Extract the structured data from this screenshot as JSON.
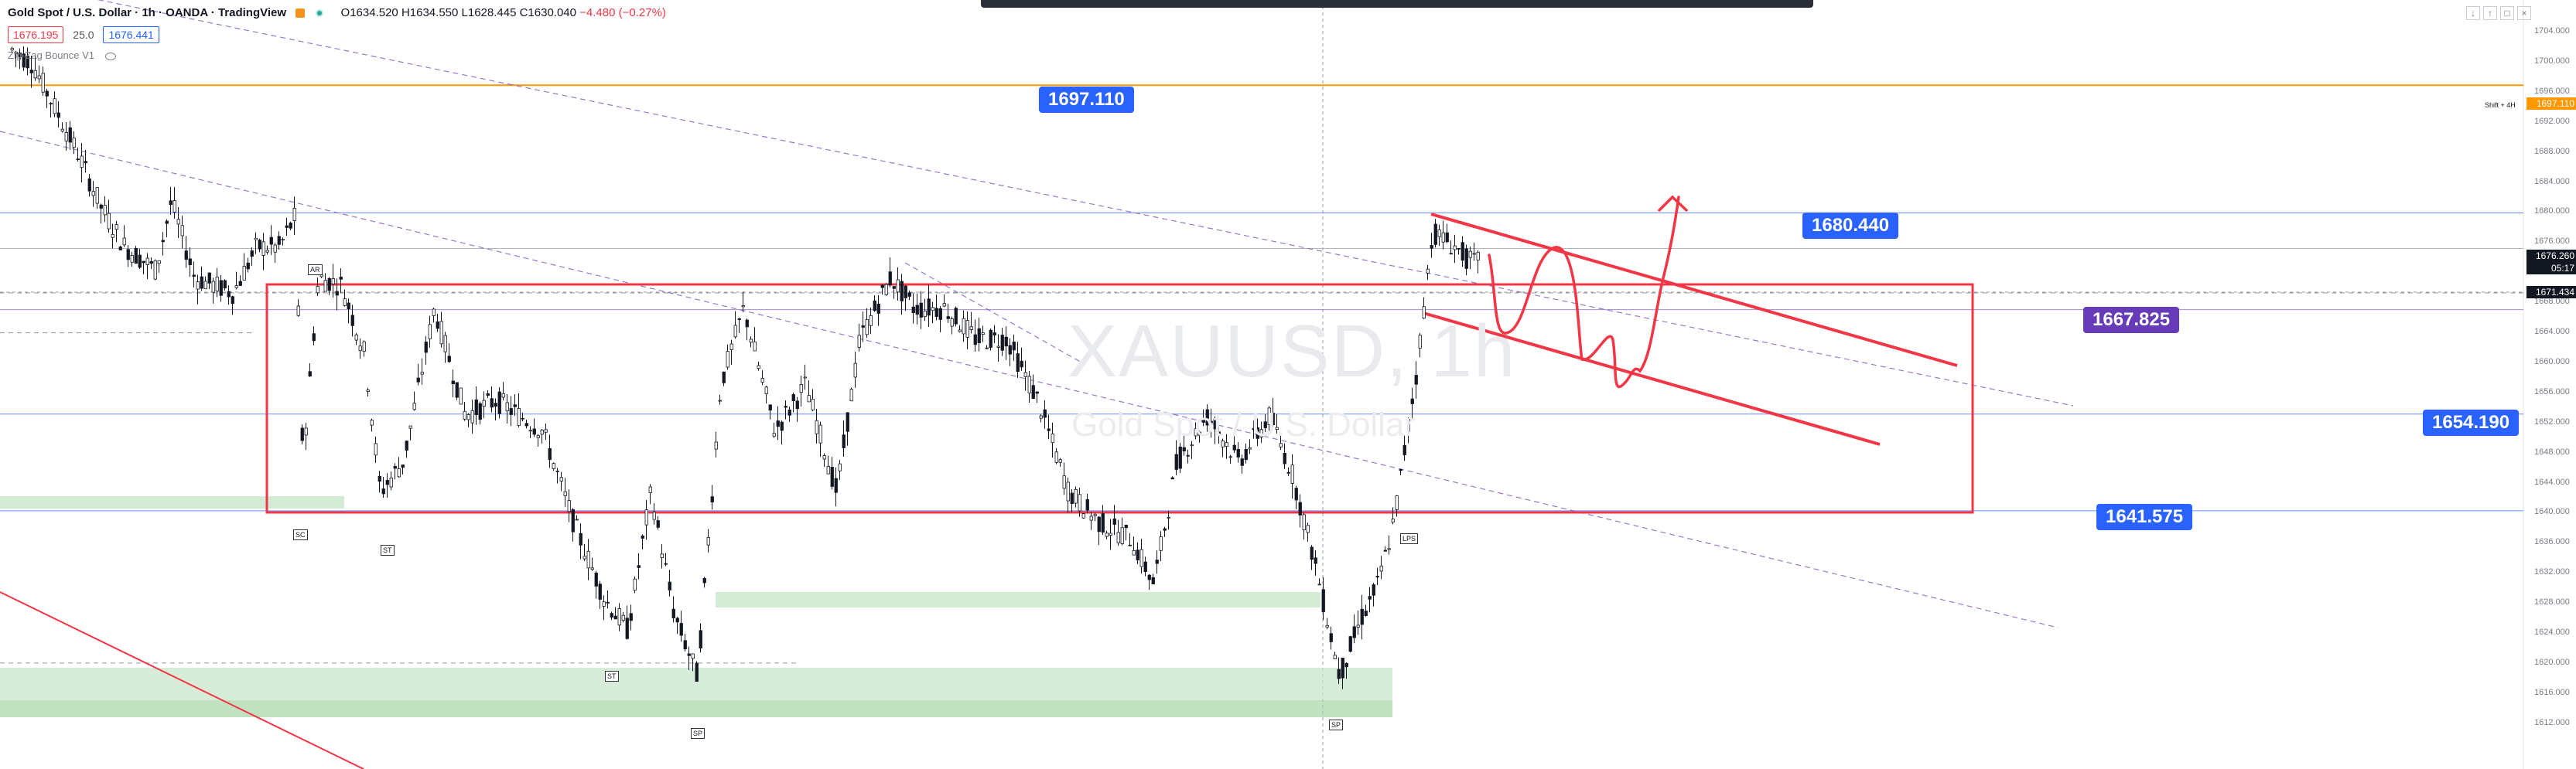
{
  "header": {
    "title": "Gold Spot / U.S. Dollar · 1h · OANDA · TradingView",
    "ohlc": "O1634.520 H1634.550 L1628.445 C1630.040",
    "change": "−4.480 (−0.27%)"
  },
  "quotes": {
    "sell": "1676.195",
    "spread": "25.0",
    "buy": "1676.441"
  },
  "indicator": {
    "name": "Zig-Zag Bounce V1"
  },
  "watermark": {
    "symbol": "XAUUSD, 1h",
    "description": "Gold Spot / U.S. Dollar"
  },
  "price_labels": {
    "p1697": "1697.110",
    "p1680": "1680.440",
    "p1667": "1667.825",
    "p1654": "1654.190",
    "p1641": "1641.575"
  },
  "axis": {
    "ticks": [
      "1704.000",
      "1700.000",
      "1696.000",
      "1692.000",
      "1688.000",
      "1684.000",
      "1680.000",
      "1676.000",
      "1672.000",
      "1668.000",
      "1664.000",
      "1660.000",
      "1656.000",
      "1652.000",
      "1648.000",
      "1644.000",
      "1640.000",
      "1636.000",
      "1632.000",
      "1628.000",
      "1624.000",
      "1620.000",
      "1616.000",
      "1612.000"
    ],
    "last_price": "1676.260",
    "countdown": "05:17",
    "tag_1697": "1697.110",
    "tag_1671": "1671.434",
    "shift_label": "Shift + 4H"
  },
  "markers": {
    "ar": "AR",
    "sc": "SC",
    "st1": "ST",
    "st2": "ST",
    "sp1": "SP",
    "sp2": "SP",
    "lps": "LPS"
  },
  "colors": {
    "up": "#131722",
    "down": "#131722",
    "blue_line": "#2962ff",
    "orange_line": "#ff9800",
    "red_box": "#f23645",
    "label_blue": "#2962ff",
    "label_purple": "#673ab7",
    "zone_green": "#c8e6c9"
  },
  "icons": [
    "eye-icon",
    "arrow-down-icon",
    "arrow-up-icon",
    "square-icon",
    "close-icon"
  ]
}
